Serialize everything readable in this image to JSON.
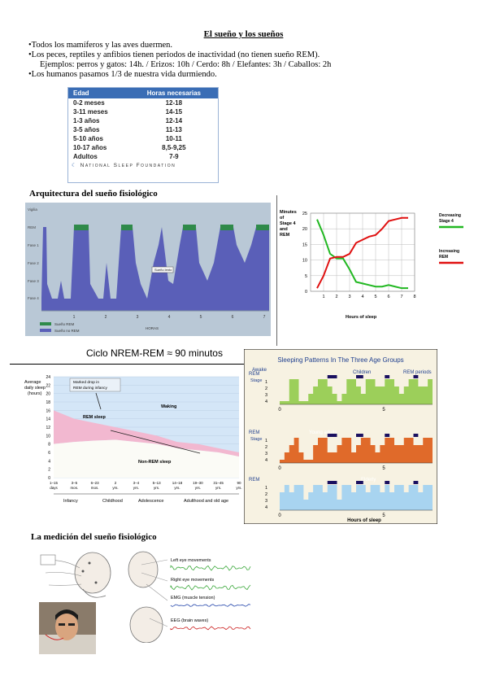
{
  "header": {
    "title": "El sueño y los sueños"
  },
  "bullets": [
    "•Todos los mamíferos y las aves duermen.",
    "•Los peces, reptiles y anfibios tienen periodos de inactividad (no tienen sueño REM).",
    "Ejemplos: perros y gatos: 14h. / Erizos: 10h / Cerdo: 8h / Elefantes: 3h / Caballos: 2h",
    "•Los humanos pasamos 1/3 de nuestra vida durmiendo."
  ],
  "sleep_table": {
    "col_age": "Edad",
    "col_hours": "Horas necesarias",
    "rows": [
      {
        "age": "0-2 meses",
        "hours": "12-18"
      },
      {
        "age": "3-11 meses",
        "hours": "14-15"
      },
      {
        "age": "1-3 años",
        "hours": "12-14"
      },
      {
        "age": "3-5 años",
        "hours": "11-13"
      },
      {
        "age": "5-10 años",
        "hours": "10-11"
      },
      {
        "age": "10-17 años",
        "hours": "8,5-9,25"
      },
      {
        "age": "Adultos",
        "hours": "7-9"
      }
    ],
    "source": "National Sleep Foundation"
  },
  "section1": {
    "title": "Arquitectura del sueño fisiológico",
    "hypnogram": {
      "ylabels": [
        "Vigilia",
        "REM",
        "Fase 1",
        "Fase 2",
        "Fase 3",
        "Fase 4"
      ],
      "xlabels": [
        "1",
        "2",
        "3",
        "4",
        "5",
        "6",
        "7"
      ],
      "legend_rem": "Sueño REM",
      "legend_nrem": "Sueño no REM",
      "xaxis": "HORAS",
      "tooltip": "Sueño lento",
      "colors": {
        "rem": "#2f8a4a",
        "nrem": "#5a5fb8",
        "bg": "#b9c8d6"
      }
    },
    "caption": "Ciclo NREM-REM ≈ 90 minutos"
  },
  "stage4_chart": {
    "type": "line",
    "ylabel": "Minutes of Stage 4 and REM",
    "xlabel": "Hours of sleep",
    "x": [
      0.5,
      1,
      1.5,
      2,
      2.5,
      3,
      3.5,
      4,
      4.5,
      5,
      5.5,
      6,
      6.5,
      7,
      7.5
    ],
    "yticks": [
      "0",
      "5",
      "10",
      "15",
      "20",
      "25"
    ],
    "xticks": [
      "1",
      "2",
      "3",
      "4",
      "5",
      "6",
      "7",
      "8"
    ],
    "series": [
      {
        "name": "Decreasing Stage 4",
        "color": "#22b822",
        "values": [
          23,
          18,
          12,
          10.5,
          10.5,
          7,
          3,
          2.5,
          2,
          1.5,
          1.5,
          2,
          1.5,
          1,
          1
        ]
      },
      {
        "name": "Increasing REM",
        "color": "#e01010",
        "values": [
          1,
          5,
          10.5,
          11,
          11,
          12,
          15.5,
          16.5,
          17.5,
          18,
          20,
          22.5,
          23,
          23.5,
          23.5
        ]
      }
    ],
    "ylim": [
      0,
      25
    ],
    "xlim": [
      0,
      8
    ]
  },
  "lifespan_chart": {
    "type": "area",
    "ylabel": "Average daily sleep (hours)",
    "yticks": [
      "0",
      "2",
      "4",
      "6",
      "8",
      "10",
      "12",
      "14",
      "16",
      "18",
      "20",
      "22",
      "24"
    ],
    "xticks": [
      "1–15 days",
      "3–5 mos.",
      "6–23 mos.",
      "2 yrs.",
      "3–4 yrs.",
      "5–13 yrs.",
      "14–18 yrs.",
      "19–30 yrs.",
      "31–45 yrs.",
      "90 yrs."
    ],
    "groups": [
      "Infancy",
      "Childhood",
      "Adolescence",
      "Adulthood and old age"
    ],
    "annotation": "Marked drop in REM during infancy",
    "labels": {
      "waking": "Waking",
      "rem": "REM sleep",
      "nrem": "Non-REM sleep"
    },
    "total": [
      16,
      14,
      13,
      12,
      11,
      10,
      8.5,
      8,
      7,
      6
    ],
    "nrem": [
      8,
      8.5,
      8.8,
      9,
      8.5,
      8,
      7,
      6.5,
      6,
      5
    ]
  },
  "age_groups_chart": {
    "title": "Sleeping Patterns In The Three Age Groups",
    "awake": "Awake",
    "rem_label": "REM",
    "stage_label": "Stage",
    "stages": [
      "1",
      "2",
      "3",
      "4"
    ],
    "panels": [
      {
        "name": "Children",
        "color": "#9ccf5a",
        "extra": "REM periods"
      },
      {
        "name": "Young adults",
        "color": "#e06a2a",
        "extra": ""
      },
      {
        "name": "Elderly",
        "color": "#a8d4f0",
        "extra": ""
      }
    ],
    "xticks": [
      "0",
      "5"
    ],
    "xlabel": "Hours of sleep"
  },
  "section2": {
    "title": "La medición del sueño fisiológico",
    "labels": [
      "Left eye movements",
      "Right eye movements",
      "EMG (muscle tension)",
      "EEG (brain waves)"
    ]
  }
}
